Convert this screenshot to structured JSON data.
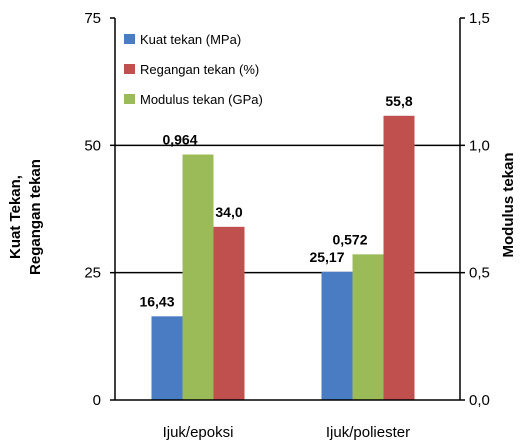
{
  "chart_data": {
    "type": "bar",
    "categories": [
      "Ijuk/epoksi",
      "Ijuk/poliester"
    ],
    "series": [
      {
        "name": "Kuat tekan (MPa)",
        "axis": "left",
        "color": "#4a7cc4",
        "values": [
          16.43,
          25.17
        ],
        "labels": [
          "16,43",
          "25,17"
        ]
      },
      {
        "name": "Regangan tekan (%)",
        "axis": "left",
        "color": "#c0504d",
        "values": [
          34.0,
          55.8
        ],
        "labels": [
          "34,0",
          "55,8"
        ]
      },
      {
        "name": "Modulus tekan (GPa)",
        "axis": "right",
        "color": "#9bbb59",
        "values": [
          0.964,
          0.572
        ],
        "labels": [
          "0,964",
          "0,572"
        ]
      }
    ],
    "left_axis": {
      "title_lines": [
        "Kuat Tekan,",
        "Regangan tekan"
      ],
      "range": [
        0,
        75
      ],
      "ticks": [
        "0",
        "25",
        "50",
        "75"
      ]
    },
    "right_axis": {
      "title": "Modulus tekan",
      "range": [
        0,
        1.5
      ],
      "ticks": [
        "0,0",
        "0,5",
        "1,0",
        "1,5"
      ]
    },
    "grid": true,
    "legend_position": "top-left"
  }
}
